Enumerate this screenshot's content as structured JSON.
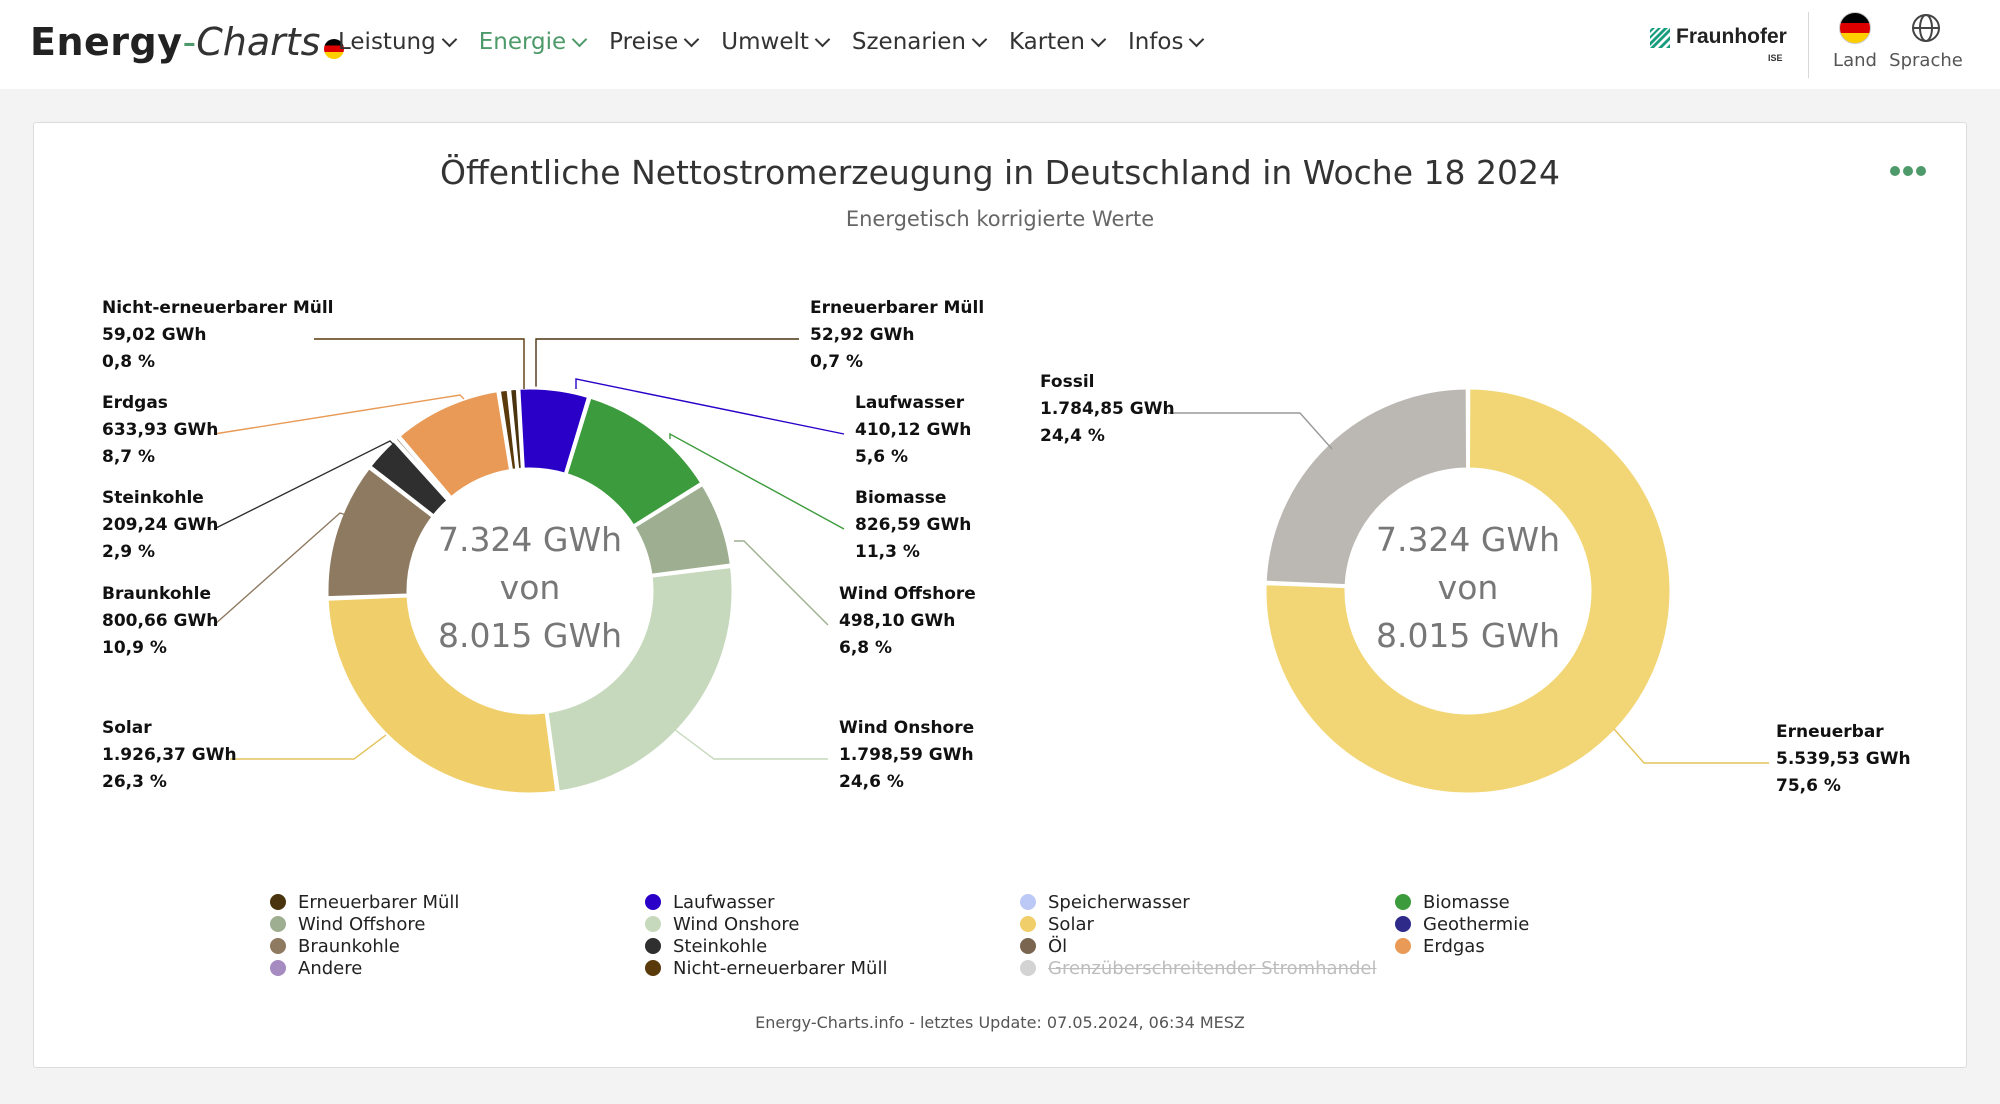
{
  "header": {
    "logo_energy": "Energy",
    "logo_dash": "-",
    "logo_charts": "Charts",
    "nav": [
      "Leistung",
      "Energie",
      "Preise",
      "Umwelt",
      "Szenarien",
      "Karten",
      "Infos"
    ],
    "active_nav": "Energie",
    "fraunhofer": "Fraunhofer",
    "fraunhofer_sub": "ISE",
    "land_label": "Land",
    "language_label": "Sprache",
    "accent_color": "#4e9a6a"
  },
  "card": {
    "title": "Öffentliche Nettostromerzeugung in Deutschland in Woche 18 2024",
    "subtitle": "Energetisch korrigierte Werte",
    "footer": "Energy-Charts.info - letztes Update: 07.05.2024, 06:34 MESZ"
  },
  "chart_data": [
    {
      "type": "pie",
      "variant": "donut",
      "center_text": [
        "7.324 GWh",
        "von",
        "8.015 GWh"
      ],
      "unit": "GWh",
      "slices": [
        {
          "name": "Erneuerbarer Müll",
          "value": 52.92,
          "percent": 0.7,
          "value_label": "52,92 GWh",
          "percent_label": "0,7 %",
          "color": "#4a3410"
        },
        {
          "name": "Laufwasser",
          "value": 410.12,
          "percent": 5.6,
          "value_label": "410,12 GWh",
          "percent_label": "5,6 %",
          "color": "#2a00c8"
        },
        {
          "name": "Biomasse",
          "value": 826.59,
          "percent": 11.3,
          "value_label": "826,59 GWh",
          "percent_label": "11,3 %",
          "color": "#3c9b3c"
        },
        {
          "name": "Wind Offshore",
          "value": 498.1,
          "percent": 6.8,
          "value_label": "498,10 GWh",
          "percent_label": "6,8 %",
          "color": "#9eae90"
        },
        {
          "name": "Wind Onshore",
          "value": 1798.59,
          "percent": 24.6,
          "value_label": "1.798,59 GWh",
          "percent_label": "24,6 %",
          "color": "#c6d9bc"
        },
        {
          "name": "Solar",
          "value": 1926.37,
          "percent": 26.3,
          "value_label": "1.926,37 GWh",
          "percent_label": "26,3 %",
          "color": "#f0cf6b"
        },
        {
          "name": "Braunkohle",
          "value": 800.66,
          "percent": 10.9,
          "value_label": "800,66 GWh",
          "percent_label": "10,9 %",
          "color": "#8e7a61"
        },
        {
          "name": "Steinkohle",
          "value": 209.24,
          "percent": 2.9,
          "value_label": "209,24 GWh",
          "percent_label": "2,9 %",
          "color": "#2f2f2f"
        },
        {
          "name": "Öl",
          "value": 30.0,
          "percent": 0.4,
          "value_label": "",
          "percent_label": "",
          "color": "#7a6650"
        },
        {
          "name": "Erdgas",
          "value": 633.93,
          "percent": 8.7,
          "value_label": "633,93 GWh",
          "percent_label": "8,7 %",
          "color": "#e89a56"
        },
        {
          "name": "Nicht-erneuerbarer Müll",
          "value": 59.02,
          "percent": 0.8,
          "value_label": "59,02 GWh",
          "percent_label": "0,8 %",
          "color": "#5a3a0a"
        }
      ]
    },
    {
      "type": "pie",
      "variant": "donut",
      "center_text": [
        "7.324 GWh",
        "von",
        "8.015 GWh"
      ],
      "unit": "GWh",
      "slices": [
        {
          "name": "Erneuerbar",
          "value": 5539.53,
          "percent": 75.6,
          "value_label": "5.539,53 GWh",
          "percent_label": "75,6 %",
          "color": "#f2d675"
        },
        {
          "name": "Fossil",
          "value": 1784.85,
          "percent": 24.4,
          "value_label": "1.784,85 GWh",
          "percent_label": "24,4 %",
          "color": "#bbb7b2"
        }
      ]
    }
  ],
  "legend": [
    {
      "name": "Erneuerbarer Müll",
      "color": "#4a3410",
      "hidden": false
    },
    {
      "name": "Laufwasser",
      "color": "#2a00c8",
      "hidden": false
    },
    {
      "name": "Speicherwasser",
      "color": "#bcc8f5",
      "hidden": false
    },
    {
      "name": "Biomasse",
      "color": "#3c9b3c",
      "hidden": false
    },
    {
      "name": "Wind Offshore",
      "color": "#9eae90",
      "hidden": false
    },
    {
      "name": "Wind Onshore",
      "color": "#c6d9bc",
      "hidden": false
    },
    {
      "name": "Solar",
      "color": "#f0cf6b",
      "hidden": false
    },
    {
      "name": "Geothermie",
      "color": "#2d2a8a",
      "hidden": false
    },
    {
      "name": "Braunkohle",
      "color": "#8e7a61",
      "hidden": false
    },
    {
      "name": "Steinkohle",
      "color": "#2f2f2f",
      "hidden": false
    },
    {
      "name": "Öl",
      "color": "#7a6650",
      "hidden": false
    },
    {
      "name": "Erdgas",
      "color": "#e89a56",
      "hidden": false
    },
    {
      "name": "Andere",
      "color": "#a58bc0",
      "hidden": false
    },
    {
      "name": "Nicht-erneuerbarer Müll",
      "color": "#5a3a0a",
      "hidden": false
    },
    {
      "name": "Grenzüberschreitender Stromhandel",
      "color": "#d3d3d3",
      "hidden": true
    }
  ]
}
